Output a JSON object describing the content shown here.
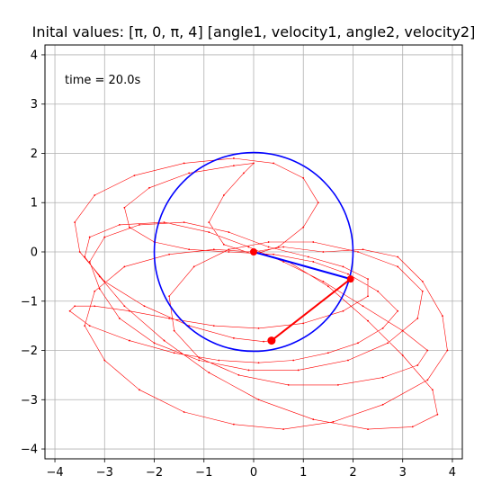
{
  "chart_data": {
    "type": "line",
    "title": "Inital values:  [π, 0, π, 4]  [angle1, velocity1, angle2, velocity2]",
    "annotation": "time = 20.0s",
    "xlim": [
      -4.2,
      4.2
    ],
    "ylim": [
      -4.2,
      4.2
    ],
    "xticks": [
      -4,
      -3,
      -2,
      -1,
      0,
      1,
      2,
      3,
      4
    ],
    "yticks": [
      -4,
      -3,
      -2,
      -1,
      0,
      1,
      2,
      3,
      4
    ],
    "grid": true,
    "colors": {
      "trail": "#ff0000",
      "circle": "#0000ff",
      "rod1": "#0000ff",
      "rod2": "#ff0000",
      "bob": "#ff0000"
    },
    "series": [
      {
        "role": "trail",
        "x": [
          0.0,
          0.6,
          1.4,
          2.2,
          2.9,
          3.4,
          3.8,
          3.9,
          3.5,
          2.6,
          1.6,
          0.6,
          -0.4,
          -1.4,
          -2.3,
          -3.0,
          -3.4,
          -3.2,
          -2.6,
          -1.7,
          -0.8,
          0.0,
          0.7,
          1.5,
          2.3,
          3.0,
          3.6,
          3.7,
          3.2,
          2.3,
          1.2,
          0.1,
          -0.9,
          -1.8,
          -2.6,
          -3.1,
          -3.4,
          -3.3,
          -2.7,
          -1.8,
          -0.9,
          -0.1,
          0.6,
          1.4,
          2.2,
          3.0,
          3.5,
          3.3,
          2.6,
          1.7,
          0.7,
          -0.3,
          -1.1,
          -1.6,
          -1.7,
          -1.2,
          -0.5,
          0.3,
          1.2,
          2.1,
          2.9,
          3.4,
          3.3,
          2.7,
          1.9,
          0.9,
          -0.1,
          -1.1,
          -2.0,
          -2.7,
          -3.1,
          -3.3,
          -3.0,
          -2.3,
          -1.4,
          -0.5,
          0.3,
          1.1,
          1.8,
          2.3,
          2.3,
          1.8,
          1.0,
          0.1,
          -0.8,
          -1.7,
          -2.5,
          -3.2,
          -3.6,
          -3.7,
          -3.3,
          -2.5,
          -1.6,
          -0.7,
          0.1,
          0.8,
          1.5,
          2.1,
          2.6,
          2.9,
          2.5,
          1.9,
          1.2,
          0.4,
          -0.5,
          -1.3,
          -2.0,
          -2.5,
          -2.6,
          -2.1,
          -1.3,
          -0.4,
          0.0,
          -0.2,
          -0.6,
          -0.9,
          -0.6,
          0.0,
          0.5,
          1.0,
          1.3,
          1.0,
          0.4,
          -0.4,
          -1.4,
          -2.4,
          -3.2,
          -3.6,
          -3.5,
          -3.0,
          -2.2,
          -1.3,
          -0.4,
          0.2,
          0.36
        ],
        "y": [
          0.0,
          0.1,
          0.0,
          0.05,
          -0.1,
          -0.6,
          -1.3,
          -2.0,
          -2.6,
          -3.1,
          -3.45,
          -3.6,
          -3.5,
          -3.25,
          -2.8,
          -2.2,
          -1.5,
          -0.8,
          -0.3,
          -0.05,
          0.05,
          0.0,
          -0.2,
          -0.7,
          -1.4,
          -2.1,
          -2.8,
          -3.3,
          -3.55,
          -3.6,
          -3.4,
          -3.0,
          -2.45,
          -1.8,
          -1.1,
          -0.5,
          -0.1,
          0.3,
          0.55,
          0.6,
          0.4,
          0.1,
          -0.2,
          -0.6,
          -1.1,
          -1.6,
          -2.0,
          -2.3,
          -2.55,
          -2.7,
          -2.7,
          -2.5,
          -2.15,
          -1.6,
          -0.9,
          -0.3,
          0.05,
          0.2,
          0.2,
          0.0,
          -0.3,
          -0.8,
          -1.35,
          -1.85,
          -2.2,
          -2.4,
          -2.4,
          -2.2,
          -1.85,
          -1.35,
          -0.75,
          -0.2,
          0.3,
          0.55,
          0.6,
          0.4,
          0.1,
          -0.1,
          -0.3,
          -0.55,
          -0.9,
          -1.2,
          -1.45,
          -1.55,
          -1.5,
          -1.35,
          -1.2,
          -1.1,
          -1.1,
          -1.2,
          -1.5,
          -1.8,
          -2.05,
          -2.2,
          -2.25,
          -2.2,
          -2.05,
          -1.85,
          -1.55,
          -1.2,
          -0.8,
          -0.45,
          -0.2,
          -0.05,
          0.0,
          0.05,
          0.2,
          0.5,
          0.9,
          1.3,
          1.6,
          1.75,
          1.8,
          1.6,
          1.15,
          0.6,
          0.15,
          -0.05,
          0.1,
          0.5,
          1.0,
          1.5,
          1.8,
          1.9,
          1.8,
          1.55,
          1.15,
          0.6,
          0.0,
          -0.6,
          -1.1,
          -1.5,
          -1.75,
          -1.82,
          -1.8
        ]
      },
      {
        "role": "circle",
        "cx": 0,
        "cy": 0,
        "r": 2
      },
      {
        "role": "rod1",
        "x": [
          0,
          1.95
        ],
        "y": [
          0,
          -0.55
        ]
      },
      {
        "role": "rod2",
        "x": [
          1.95,
          0.36
        ],
        "y": [
          -0.55,
          -1.8
        ]
      }
    ]
  }
}
